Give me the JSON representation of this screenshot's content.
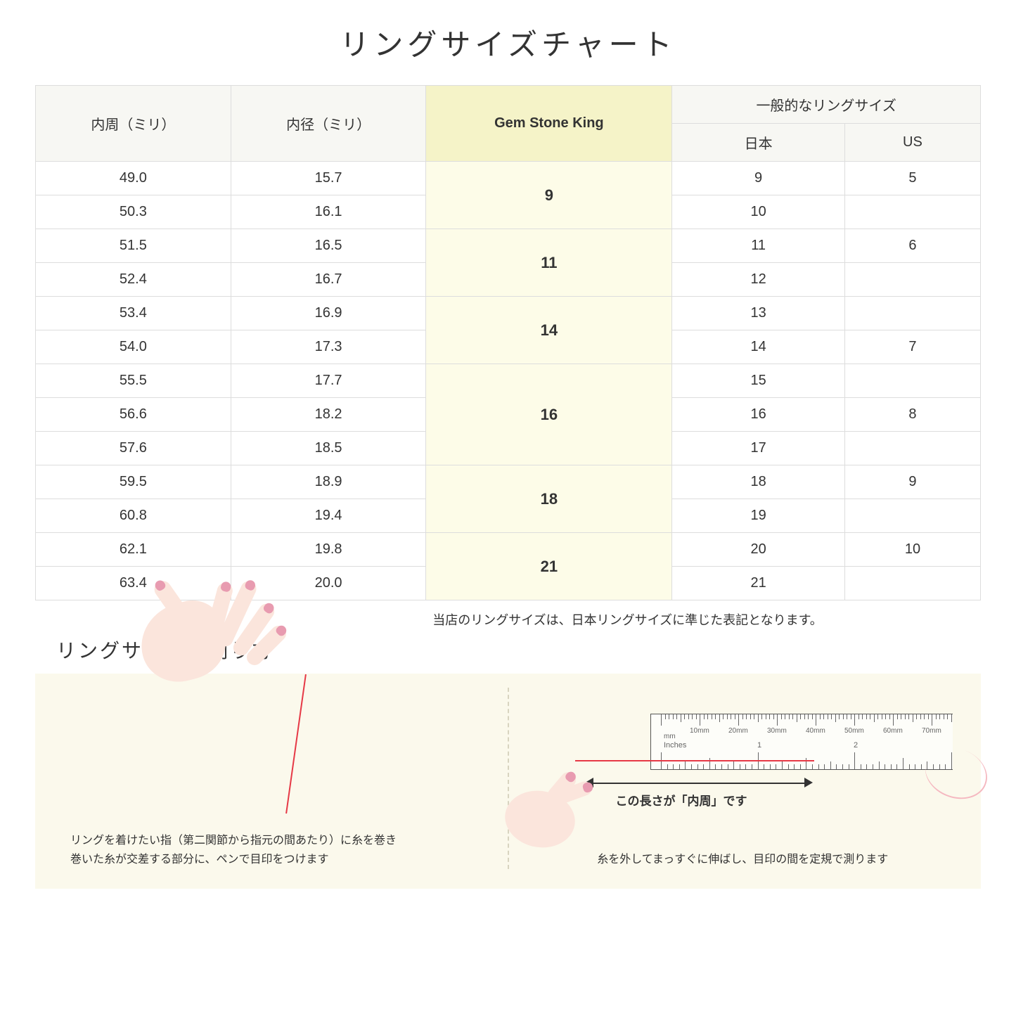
{
  "title": "リングサイズチャート",
  "note": "当店のリングサイズは、日本リングサイズに準じた表記となります。",
  "measure_title": "リングサイズの測り方",
  "table": {
    "headers": {
      "circumference": "内周（ミリ）",
      "diameter": "内径（ミリ）",
      "gsk": "Gem Stone King",
      "general": "一般的なリングサイズ",
      "japan": "日本",
      "us": "US"
    },
    "rows": [
      {
        "circ": "49.0",
        "dia": "15.7",
        "gsk": "9",
        "gsk_span": 2,
        "jp": "9",
        "us": "5"
      },
      {
        "circ": "50.3",
        "dia": "16.1",
        "jp": "10",
        "us": ""
      },
      {
        "circ": "51.5",
        "dia": "16.5",
        "gsk": "11",
        "gsk_span": 2,
        "jp": "11",
        "us": "6"
      },
      {
        "circ": "52.4",
        "dia": "16.7",
        "jp": "12",
        "us": ""
      },
      {
        "circ": "53.4",
        "dia": "16.9",
        "gsk": "14",
        "gsk_span": 2,
        "jp": "13",
        "us": ""
      },
      {
        "circ": "54.0",
        "dia": "17.3",
        "jp": "14",
        "us": "7"
      },
      {
        "circ": "55.5",
        "dia": "17.7",
        "gsk": "16",
        "gsk_span": 3,
        "jp": "15",
        "us": ""
      },
      {
        "circ": "56.6",
        "dia": "18.2",
        "jp": "16",
        "us": "8"
      },
      {
        "circ": "57.6",
        "dia": "18.5",
        "jp": "17",
        "us": ""
      },
      {
        "circ": "59.5",
        "dia": "18.9",
        "gsk": "18",
        "gsk_span": 2,
        "jp": "18",
        "us": "9"
      },
      {
        "circ": "60.8",
        "dia": "19.4",
        "jp": "19",
        "us": ""
      },
      {
        "circ": "62.1",
        "dia": "19.8",
        "gsk": "21",
        "gsk_span": 2,
        "jp": "20",
        "us": "10"
      },
      {
        "circ": "63.4",
        "dia": "20.0",
        "jp": "21",
        "us": ""
      }
    ]
  },
  "instructions": {
    "step1_line1": "リングを着けたい指（第二関節から指元の間あたり）に糸を巻き",
    "step1_line2": "巻いた糸が交差する部分に、ペンで目印をつけます",
    "step2_arrow": "この長さが「内周」です",
    "step2_text": "糸を外してまっすぐに伸ばし、目印の間を定規で測ります"
  },
  "ruler": {
    "mm_unit": "mm",
    "in_unit": "Inches",
    "mm_labels": [
      "10mm",
      "20mm",
      "30mm",
      "40mm",
      "50mm",
      "60mm",
      "70mm"
    ],
    "in_numbers": [
      "1",
      "2"
    ]
  },
  "colors": {
    "header_bg": "#f7f7f3",
    "gsk_header_bg": "#f5f3c8",
    "gsk_cell_bg": "#fdfce8",
    "border": "#dddddd",
    "instruction_bg": "#fbf9ec",
    "skin": "#fbe5dc",
    "nail": "#e89bb0",
    "thread": "#e63946"
  }
}
